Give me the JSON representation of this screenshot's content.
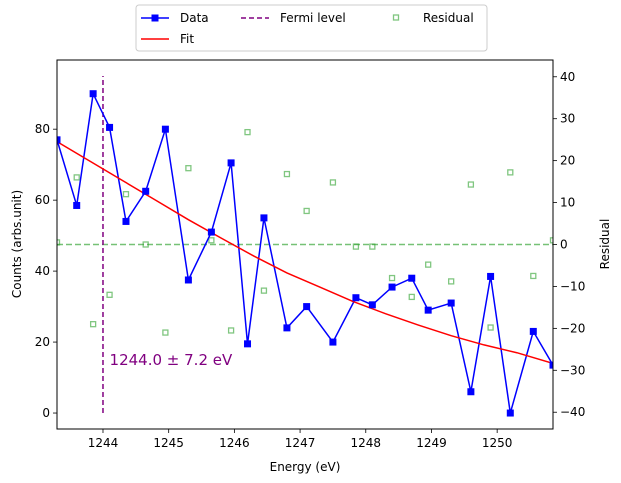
{
  "chart_data": {
    "type": "line",
    "xlabel": "Energy (eV)",
    "ylabel": "Counts (arbs.unit)",
    "y2label": "Residual",
    "xlim": [
      1243.3,
      1250.85
    ],
    "ylim": [
      -4.5,
      99.5
    ],
    "y2lim": [
      -44,
      44
    ],
    "xticks": [
      1244,
      1245,
      1246,
      1247,
      1248,
      1249,
      1250
    ],
    "yticks": [
      0,
      20,
      40,
      60,
      80
    ],
    "y2ticks": [
      -40,
      -30,
      -20,
      -10,
      0,
      10,
      20,
      30,
      40
    ],
    "legend_position": "top-center, above plot",
    "series": [
      {
        "name": "Data",
        "kind": "line-marker",
        "color": "#0000ff",
        "marker": "square",
        "x": [
          1243.3,
          1243.6,
          1243.85,
          1244.1,
          1244.35,
          1244.65,
          1244.95,
          1245.3,
          1245.65,
          1245.95,
          1246.2,
          1246.45,
          1246.8,
          1247.1,
          1247.5,
          1247.85,
          1248.1,
          1248.4,
          1248.7,
          1248.95,
          1249.3,
          1249.6,
          1249.9,
          1250.2,
          1250.55,
          1250.85
        ],
        "y": [
          77,
          58.5,
          90,
          80.5,
          54,
          62.5,
          80,
          37.5,
          51,
          70.5,
          19.5,
          55,
          24,
          30,
          20,
          32.5,
          30.5,
          35.5,
          38,
          29,
          31,
          6,
          38.5,
          0,
          23,
          13.5
        ]
      },
      {
        "name": "Fit",
        "kind": "line",
        "color": "#ff0000",
        "x": [
          1243.3,
          1243.8,
          1244.3,
          1244.8,
          1245.3,
          1245.8,
          1246.3,
          1246.8,
          1247.3,
          1247.8,
          1248.3,
          1248.8,
          1249.3,
          1249.8,
          1250.3,
          1250.85
        ],
        "y": [
          76.5,
          71,
          65.5,
          60,
          54.5,
          49.3,
          44.2,
          39.5,
          35.5,
          31.5,
          28,
          24.8,
          21.8,
          19.2,
          17,
          14
        ]
      },
      {
        "name": "Fermi level",
        "kind": "vline-dashed",
        "color": "#800080",
        "x": 1244.0,
        "y_range": [
          0,
          95
        ]
      },
      {
        "name": "Residual",
        "kind": "scatter",
        "axis": "right",
        "color": "#2ca02c",
        "marker": "hollow-square",
        "x": [
          1243.3,
          1243.6,
          1243.85,
          1244.1,
          1244.35,
          1244.65,
          1244.95,
          1245.3,
          1245.65,
          1245.95,
          1246.2,
          1246.45,
          1246.8,
          1247.1,
          1247.5,
          1247.85,
          1248.1,
          1248.4,
          1248.7,
          1248.95,
          1249.3,
          1249.6,
          1249.9,
          1250.2,
          1250.55,
          1250.85
        ],
        "y": [
          0.5,
          16,
          -19,
          -12,
          12,
          0,
          -21,
          18.2,
          1,
          -20.5,
          26.8,
          -11,
          16.8,
          8,
          14.8,
          -0.5,
          -0.5,
          -8,
          -12.5,
          -4.8,
          -8.8,
          14.3,
          -19.8,
          17.2,
          -7.5,
          1
        ]
      }
    ],
    "residual_zero_line": {
      "y": 0,
      "color": "#2ca02c",
      "style": "dashed"
    },
    "annotation": {
      "text": "1244.0 ± 7.2 eV",
      "color": "#800080",
      "x": 1244.1,
      "y": 15
    }
  }
}
